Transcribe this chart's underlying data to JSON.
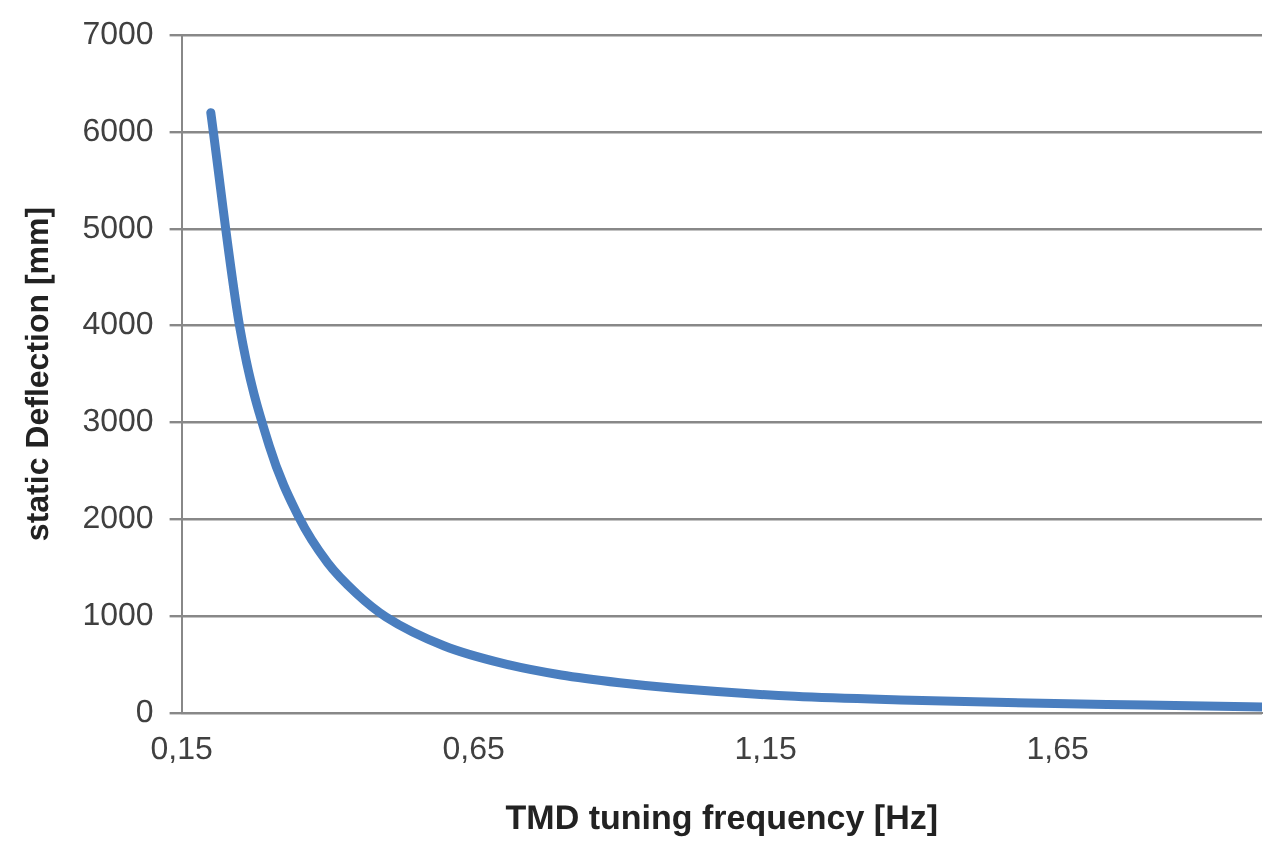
{
  "chart_data": {
    "type": "line",
    "xlabel": "TMD tuning frequency [Hz]",
    "ylabel": "static Deflection [mm]",
    "x": [
      0.2,
      0.25,
      0.3,
      0.35,
      0.4,
      0.45,
      0.5,
      0.6,
      0.7,
      0.8,
      0.9,
      1.0,
      1.2,
      1.4,
      1.6,
      1.8,
      2.0
    ],
    "series": [
      {
        "color": "#4a7ebf",
        "values": [
          6200,
          3970,
          2760,
          2030,
          1550,
          1230,
          990,
          690,
          510,
          390,
          310,
          250,
          170,
          130,
          100,
          80,
          60
        ]
      }
    ],
    "xlim": [
      0.15,
      2.0
    ],
    "xticks": [
      {
        "value": 0.15,
        "label": "0,15"
      },
      {
        "value": 0.65,
        "label": "0,65"
      },
      {
        "value": 1.15,
        "label": "1,15"
      },
      {
        "value": 1.65,
        "label": "1,65"
      }
    ],
    "ylim": [
      0,
      7000
    ],
    "yticks": [
      0,
      1000,
      2000,
      3000,
      4000,
      5000,
      6000,
      7000
    ],
    "grid": "y",
    "legend": false,
    "marker": "none",
    "line_style": "solid"
  }
}
